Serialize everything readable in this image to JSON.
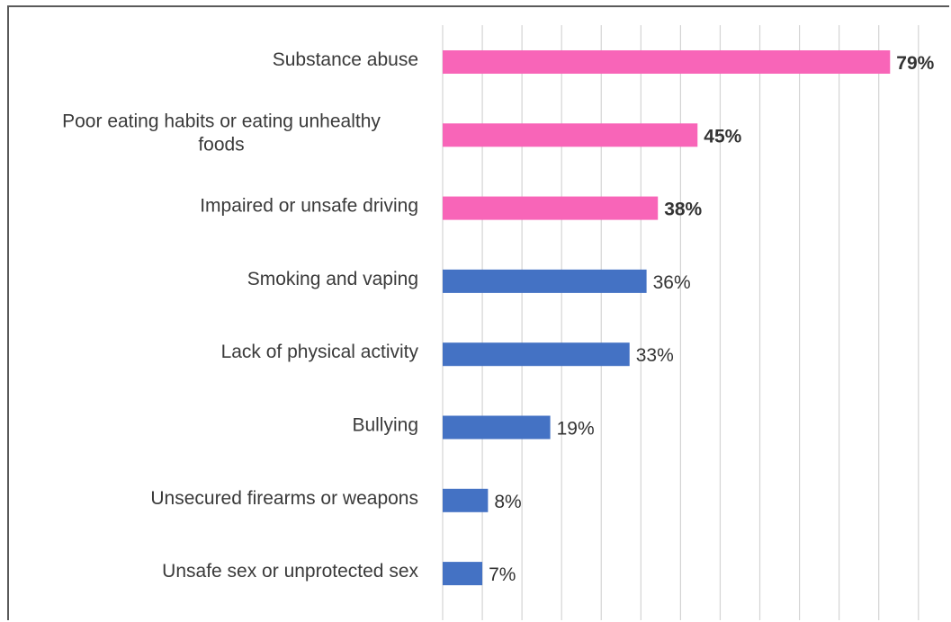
{
  "chart_data": {
    "type": "bar",
    "orientation": "horizontal",
    "title": "",
    "xlabel": "",
    "ylabel": "",
    "xlim": [
      0,
      100
    ],
    "grid": true,
    "legend": "none",
    "categories": [
      [
        "Substance abuse"
      ],
      [
        "Poor eating habits or eating unhealthy",
        "foods"
      ],
      [
        "Impaired or unsafe driving"
      ],
      [
        "Smoking and vaping"
      ],
      [
        "Lack of physical activity"
      ],
      [
        "Bullying"
      ],
      [
        "Unsecured firearms or weapons"
      ],
      [
        "Unsafe sex or unprotected sex"
      ]
    ],
    "values": [
      79,
      45,
      38,
      36,
      33,
      19,
      8,
      7
    ],
    "value_labels": [
      "79%",
      "45%",
      "38%",
      "36%",
      "33%",
      "19%",
      "8%",
      "7%"
    ],
    "highlighted": [
      true,
      true,
      true,
      false,
      false,
      false,
      false,
      false
    ],
    "colors": {
      "highlight": "#f865b8",
      "default": "#4472c4",
      "grid": "#d4d4d4"
    }
  }
}
